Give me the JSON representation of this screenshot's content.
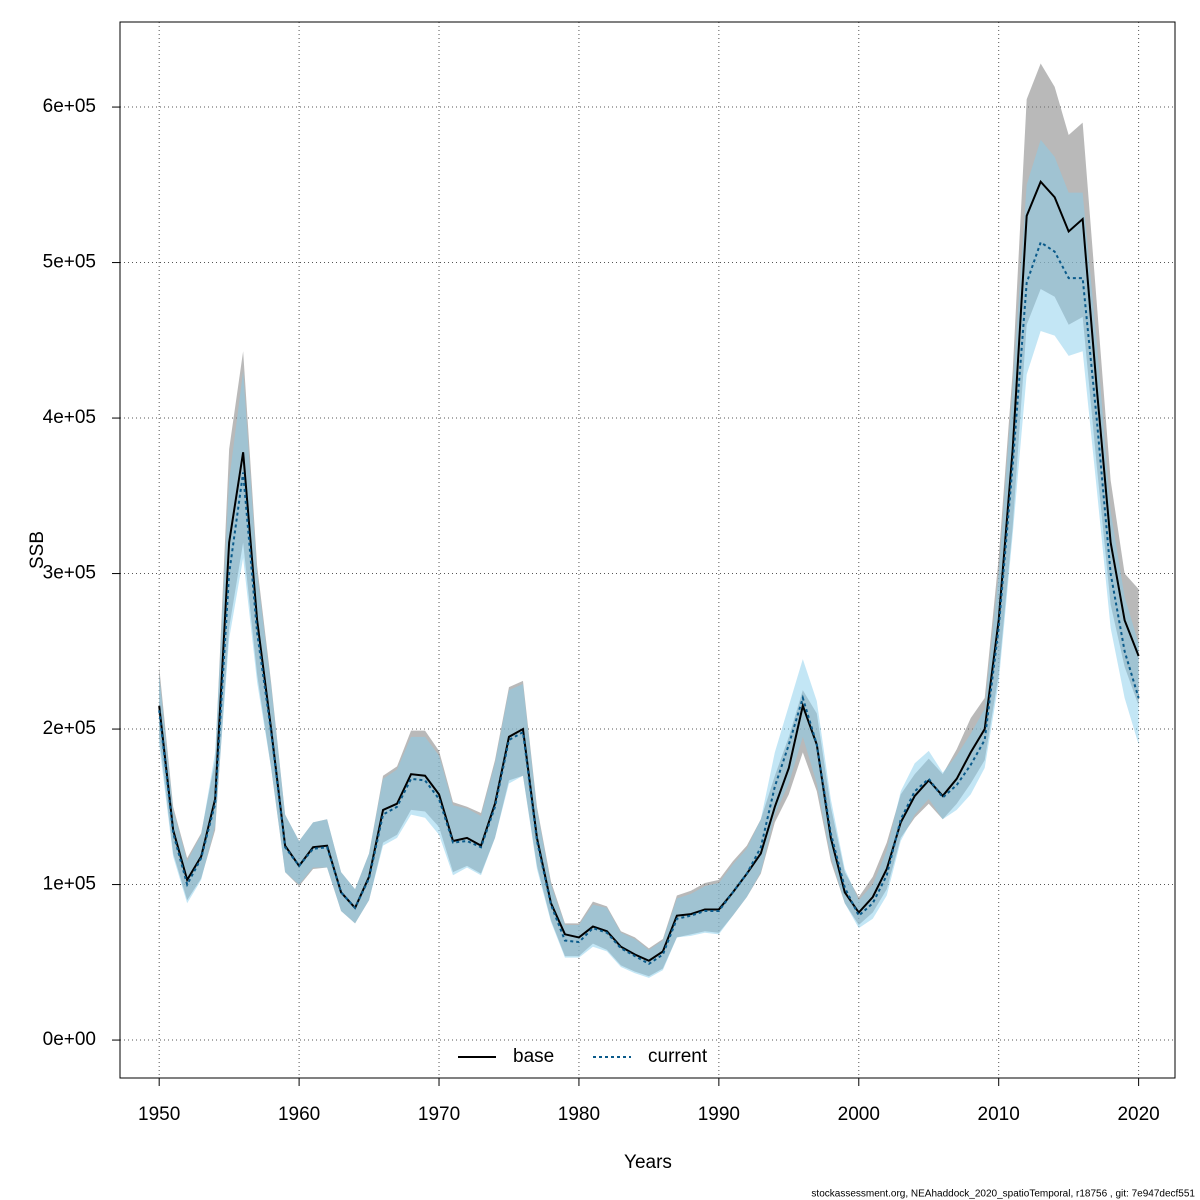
{
  "chart_data": {
    "type": "line",
    "xlabel": "Years",
    "ylabel": "SSB",
    "footnote": "stockassessment.org, NEAhaddock_2020_spatioTemporal, r18756 , git: 7e947decf551",
    "xlim": [
      1947.2,
      2022.6
    ],
    "ylim": [
      -24400,
      654700
    ],
    "xticks": [
      1950,
      1960,
      1970,
      1980,
      1990,
      2000,
      2010,
      2020
    ],
    "yticks": [
      {
        "value": 0,
        "label": "0e+00"
      },
      {
        "value": 100000,
        "label": "1e+05"
      },
      {
        "value": 200000,
        "label": "2e+05"
      },
      {
        "value": 300000,
        "label": "3e+05"
      },
      {
        "value": 400000,
        "label": "4e+05"
      },
      {
        "value": 500000,
        "label": "5e+05"
      },
      {
        "value": 600000,
        "label": "6e+05"
      }
    ],
    "grid": true,
    "legend": "bottom",
    "x": [
      1950,
      1951,
      1952,
      1953,
      1954,
      1955,
      1956,
      1957,
      1958,
      1959,
      1960,
      1961,
      1962,
      1963,
      1964,
      1965,
      1966,
      1967,
      1968,
      1969,
      1970,
      1971,
      1972,
      1973,
      1974,
      1975,
      1976,
      1977,
      1978,
      1979,
      1980,
      1981,
      1982,
      1983,
      1984,
      1985,
      1986,
      1987,
      1988,
      1989,
      1990,
      1991,
      1992,
      1993,
      1994,
      1995,
      1996,
      1997,
      1998,
      1999,
      2000,
      2001,
      2002,
      2003,
      2004,
      2005,
      2006,
      2007,
      2008,
      2009,
      2010,
      2011,
      2012,
      2013,
      2014,
      2015,
      2016,
      2017,
      2018,
      2019,
      2020
    ],
    "series": [
      {
        "name": "base",
        "color": "#000000",
        "dash": "solid",
        "band_color": "rgba(128,128,128,0.55)",
        "values": [
          215000,
          135000,
          103000,
          118000,
          155000,
          320000,
          378000,
          270000,
          200000,
          125000,
          112000,
          124000,
          125000,
          95000,
          85000,
          105000,
          148000,
          152000,
          171000,
          170000,
          158000,
          128000,
          130000,
          125000,
          152000,
          195000,
          200000,
          130000,
          88000,
          68000,
          66000,
          73000,
          70000,
          60000,
          55000,
          51000,
          57000,
          80000,
          81000,
          84000,
          84000,
          95000,
          107000,
          120000,
          150000,
          175000,
          215000,
          190000,
          130000,
          95000,
          82000,
          92000,
          110000,
          140000,
          157000,
          167000,
          157000,
          168000,
          185000,
          200000,
          270000,
          380000,
          530000,
          552000,
          542000,
          520000,
          528000,
          420000,
          320000,
          270000,
          247000
        ],
        "lower": [
          195000,
          120000,
          90000,
          104000,
          135000,
          265000,
          320000,
          235000,
          175000,
          108000,
          99000,
          110000,
          111000,
          83000,
          75000,
          90000,
          127000,
          132000,
          148000,
          147000,
          137000,
          108000,
          112000,
          107000,
          130000,
          167000,
          170000,
          112000,
          77000,
          54000,
          54000,
          62000,
          58000,
          48000,
          44000,
          41000,
          46000,
          66000,
          68000,
          70000,
          69000,
          80000,
          92000,
          107000,
          140000,
          158000,
          185000,
          160000,
          115000,
          88000,
          74000,
          82000,
          97000,
          130000,
          143000,
          152000,
          142000,
          152000,
          165000,
          180000,
          235000,
          330000,
          460000,
          483000,
          478000,
          460000,
          465000,
          370000,
          280000,
          240000,
          215000
        ],
        "upper": [
          240000,
          150000,
          117000,
          133000,
          180000,
          380000,
          443000,
          305000,
          230000,
          145000,
          128000,
          140000,
          142000,
          108000,
          97000,
          120000,
          170000,
          176000,
          199000,
          199000,
          186000,
          153000,
          150000,
          146000,
          180000,
          227000,
          231000,
          150000,
          102000,
          75000,
          75000,
          89000,
          86000,
          70000,
          66000,
          59000,
          65000,
          93000,
          96000,
          101000,
          103000,
          115000,
          125000,
          142000,
          170000,
          195000,
          225000,
          210000,
          150000,
          108000,
          92000,
          105000,
          127000,
          158000,
          171000,
          181000,
          171000,
          187000,
          207000,
          220000,
          310000,
          430000,
          605000,
          628000,
          613000,
          582000,
          590000,
          475000,
          360000,
          300000,
          290000
        ]
      },
      {
        "name": "current",
        "color": "#0a5a8a",
        "dash": "dotted",
        "band_color": "rgba(135,206,235,0.5)",
        "values": [
          212000,
          133000,
          100000,
          117000,
          152000,
          300000,
          365000,
          262000,
          198000,
          124000,
          112000,
          123000,
          124000,
          95000,
          85000,
          104000,
          145000,
          150000,
          168000,
          167000,
          155000,
          127000,
          128000,
          124000,
          150000,
          193000,
          198000,
          128000,
          87000,
          64000,
          63000,
          72000,
          69000,
          59000,
          54000,
          49000,
          55000,
          78000,
          80000,
          83000,
          83000,
          95000,
          107000,
          124000,
          163000,
          190000,
          220000,
          190000,
          133000,
          98000,
          80000,
          88000,
          106000,
          142000,
          160000,
          168000,
          156000,
          164000,
          177000,
          193000,
          265000,
          370000,
          487000,
          513000,
          507000,
          490000,
          490000,
          400000,
          300000,
          250000,
          220000
        ],
        "lower": [
          190000,
          118000,
          88000,
          103000,
          138000,
          258000,
          310000,
          230000,
          175000,
          108000,
          100000,
          111000,
          111000,
          83000,
          75000,
          90000,
          125000,
          130000,
          145000,
          143000,
          132000,
          106000,
          111000,
          106000,
          130000,
          165000,
          170000,
          110000,
          76000,
          53000,
          53000,
          60000,
          57000,
          47000,
          43000,
          40000,
          45000,
          66000,
          67000,
          69000,
          68000,
          80000,
          92000,
          108000,
          145000,
          165000,
          195000,
          165000,
          118000,
          88000,
          72000,
          78000,
          93000,
          128000,
          145000,
          155000,
          142000,
          148000,
          158000,
          175000,
          230000,
          325000,
          428000,
          456000,
          453000,
          440000,
          443000,
          355000,
          265000,
          220000,
          190000
        ],
        "upper": [
          235000,
          148000,
          115000,
          132000,
          185000,
          360000,
          430000,
          300000,
          228000,
          145000,
          128000,
          140000,
          142000,
          108000,
          97000,
          120000,
          168000,
          174000,
          195000,
          195000,
          183000,
          151000,
          149000,
          144000,
          178000,
          225000,
          229000,
          148000,
          100000,
          74000,
          74000,
          87000,
          85000,
          69000,
          65000,
          58000,
          64000,
          91000,
          94000,
          99000,
          101000,
          113000,
          123000,
          142000,
          185000,
          215000,
          245000,
          218000,
          155000,
          110000,
          90000,
          100000,
          122000,
          160000,
          178000,
          186000,
          172000,
          183000,
          197000,
          213000,
          300000,
          420000,
          550000,
          579000,
          568000,
          545000,
          545000,
          450000,
          340000,
          285000,
          255000
        ]
      }
    ]
  }
}
